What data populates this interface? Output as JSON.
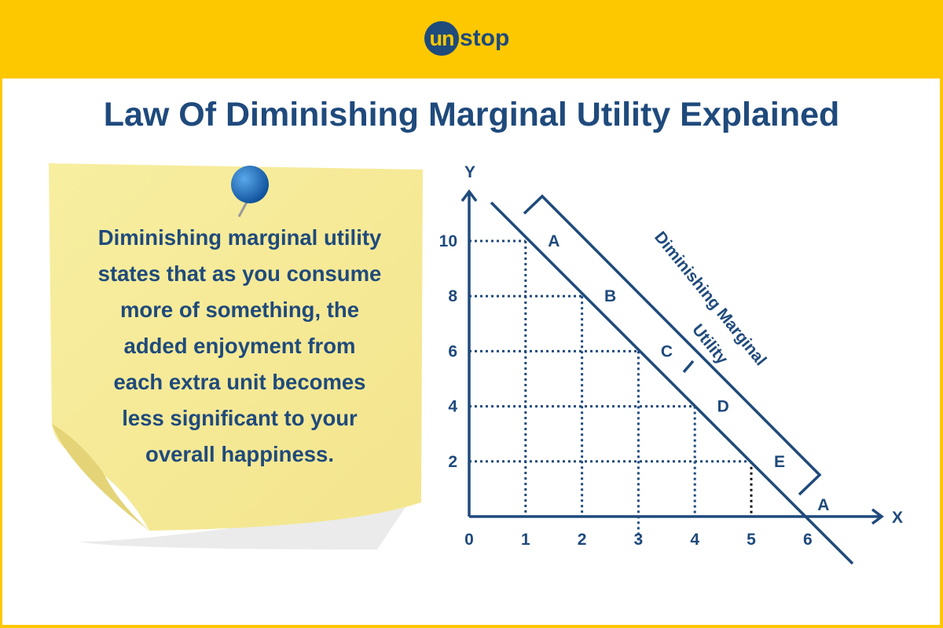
{
  "header": {
    "logo": {
      "circle_text": "un",
      "rest_text": "stop"
    }
  },
  "title": "Law Of Diminishing Marginal Utility Explained",
  "note": {
    "text_lines": [
      "Diminishing marginal utility",
      "states that as you consume",
      "more of something, the",
      "added enjoyment from",
      "each extra unit becomes",
      "less significant to your",
      "overall happiness."
    ],
    "icon": "push-pin-icon"
  },
  "chart_data": {
    "type": "line",
    "xlabel": "X",
    "ylabel": "Y",
    "x_ticks": [
      "0",
      "1",
      "2",
      "3",
      "4",
      "5",
      "6"
    ],
    "y_ticks": [
      "2",
      "4",
      "6",
      "8",
      "10"
    ],
    "points": [
      {
        "label": "A",
        "x": 1,
        "y": 10
      },
      {
        "label": "B",
        "x": 2,
        "y": 8
      },
      {
        "label": "C",
        "x": 3,
        "y": 6
      },
      {
        "label": "D",
        "x": 4,
        "y": 4
      },
      {
        "label": "E",
        "x": 5,
        "y": 2
      },
      {
        "label": "A",
        "x": 6,
        "y": 0
      }
    ],
    "annotation": [
      "Diminishing Marginal",
      "Utility"
    ],
    "colors": {
      "line": "#1f4a7c",
      "accent": "#fdc800"
    }
  }
}
